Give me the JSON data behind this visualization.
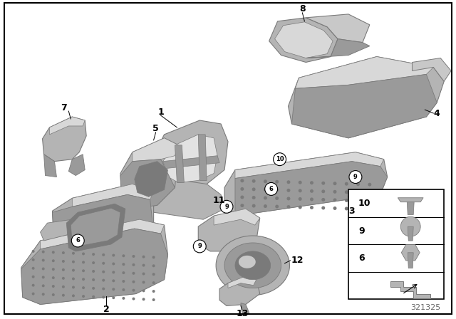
{
  "title": "",
  "bg_color": "#ffffff",
  "border_color": "#000000",
  "fig_number": "321325",
  "text_color": "#000000",
  "gray1": "#c8c8c8",
  "gray2": "#b4b4b4",
  "gray3": "#9a9a9a",
  "gray4": "#7a7a7a",
  "gray5": "#d8d8d8",
  "gray6": "#e2e2e2"
}
